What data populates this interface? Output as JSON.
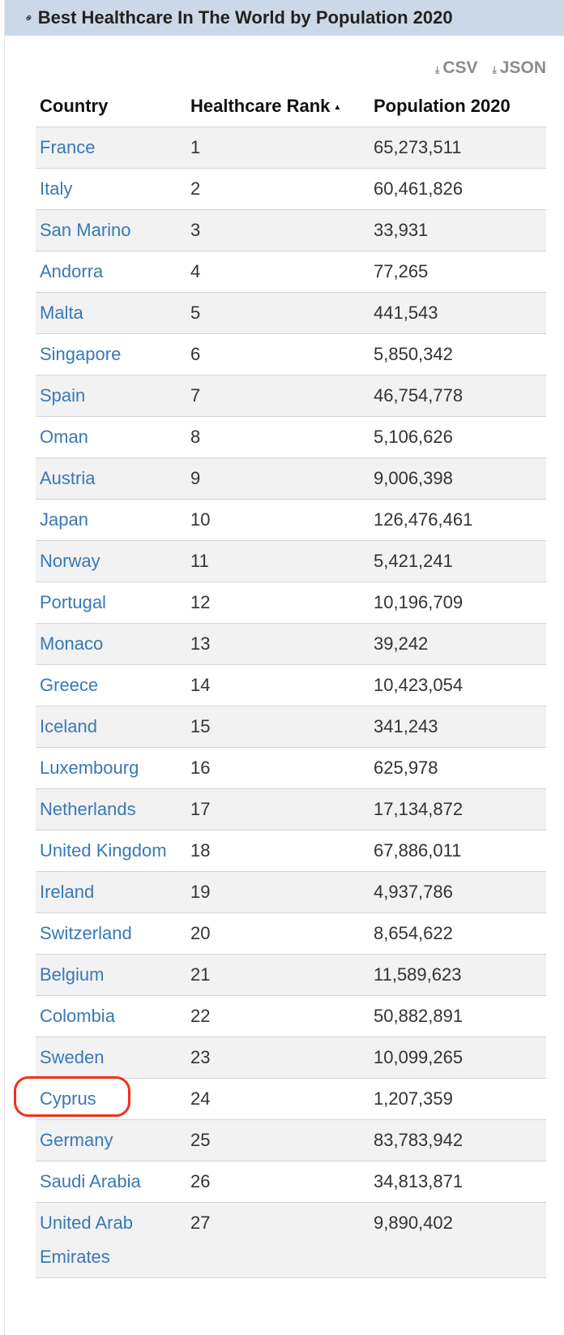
{
  "header": {
    "title": "Best Healthcare In The World by Population 2020",
    "link_icon": "link-icon"
  },
  "downloads": {
    "csv_label": "CSV",
    "json_label": "JSON",
    "icon": "download-icon"
  },
  "table": {
    "columns": [
      "Country",
      "Healthcare Rank",
      "Population 2020"
    ],
    "sorted_column": "Healthcare Rank",
    "sort_direction": "ascending",
    "rows": [
      {
        "country": "France",
        "rank": "1",
        "population": "65,273,511"
      },
      {
        "country": "Italy",
        "rank": "2",
        "population": "60,461,826"
      },
      {
        "country": "San Marino",
        "rank": "3",
        "population": "33,931"
      },
      {
        "country": "Andorra",
        "rank": "4",
        "population": "77,265"
      },
      {
        "country": "Malta",
        "rank": "5",
        "population": "441,543"
      },
      {
        "country": "Singapore",
        "rank": "6",
        "population": "5,850,342"
      },
      {
        "country": "Spain",
        "rank": "7",
        "population": "46,754,778"
      },
      {
        "country": "Oman",
        "rank": "8",
        "population": "5,106,626"
      },
      {
        "country": "Austria",
        "rank": "9",
        "population": "9,006,398"
      },
      {
        "country": "Japan",
        "rank": "10",
        "population": "126,476,461"
      },
      {
        "country": "Norway",
        "rank": "11",
        "population": "5,421,241"
      },
      {
        "country": "Portugal",
        "rank": "12",
        "population": "10,196,709"
      },
      {
        "country": "Monaco",
        "rank": "13",
        "population": "39,242"
      },
      {
        "country": "Greece",
        "rank": "14",
        "population": "10,423,054"
      },
      {
        "country": "Iceland",
        "rank": "15",
        "population": "341,243"
      },
      {
        "country": "Luxembourg",
        "rank": "16",
        "population": "625,978"
      },
      {
        "country": "Netherlands",
        "rank": "17",
        "population": "17,134,872"
      },
      {
        "country": "United Kingdom",
        "rank": "18",
        "population": "67,886,011"
      },
      {
        "country": "Ireland",
        "rank": "19",
        "population": "4,937,786"
      },
      {
        "country": "Switzerland",
        "rank": "20",
        "population": "8,654,622"
      },
      {
        "country": "Belgium",
        "rank": "21",
        "population": "11,589,623"
      },
      {
        "country": "Colombia",
        "rank": "22",
        "population": "50,882,891"
      },
      {
        "country": "Sweden",
        "rank": "23",
        "population": "10,099,265"
      },
      {
        "country": "Cyprus",
        "rank": "24",
        "population": "1,207,359"
      },
      {
        "country": "Germany",
        "rank": "25",
        "population": "83,783,942"
      },
      {
        "country": "Saudi Arabia",
        "rank": "26",
        "population": "34,813,871"
      },
      {
        "country": "United Arab Emirates",
        "rank": "27",
        "population": "9,890,402"
      }
    ]
  },
  "annotation": {
    "highlighted_country": "Cyprus",
    "color": "#f2301b"
  },
  "colors": {
    "header_bg": "#cbd8e7",
    "link": "#3879b5",
    "row_stripe": "#f2f2f2"
  }
}
